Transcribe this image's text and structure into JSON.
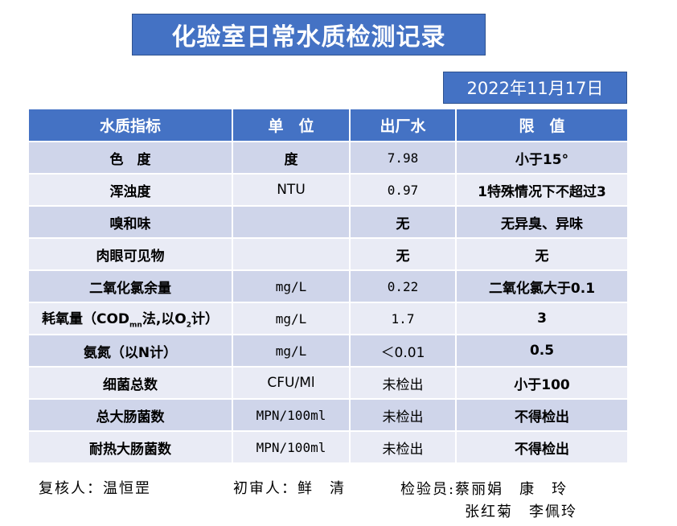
{
  "title": "化验室日常水质检测记录",
  "date": "2022年11月17日",
  "headers": [
    "水质指标",
    "单　位",
    "出厂水",
    "限　值"
  ],
  "rows": [
    {
      "indicator": "色　度",
      "unit": "度",
      "value": "7.98",
      "limit": "小于15°"
    },
    {
      "indicator": "浑浊度",
      "unit": "NTU",
      "value": "0.97",
      "limit": "1特殊情况下不超过3"
    },
    {
      "indicator": "嗅和味",
      "unit": "",
      "value": "无",
      "limit": "无异臭、异味"
    },
    {
      "indicator": "肉眼可见物",
      "unit": "",
      "value": "无",
      "limit": "无"
    },
    {
      "indicator": "二氧化氯余量",
      "unit": "mg/L",
      "value": "0.22",
      "limit": "二氧化氯大于0.1"
    },
    {
      "indicator_parts": [
        "耗氧量（COD",
        "mn",
        "法,以O",
        "2",
        "计）"
      ],
      "unit": "mg/L",
      "value": "1.7",
      "limit": "3"
    },
    {
      "indicator": "氨氮（以N计）",
      "unit": "mg/L",
      "value": "＜0.01",
      "limit": "0.5"
    },
    {
      "indicator": "细菌总数",
      "unit": "CFU/Ml",
      "value": "未检出",
      "limit": "小于100"
    },
    {
      "indicator": "总大肠菌数",
      "unit": "MPN/100ml",
      "value": "未检出",
      "limit": "不得检出"
    },
    {
      "indicator": "耐热大肠菌数",
      "unit": "MPN/100ml",
      "value": "未检出",
      "limit": "不得检出"
    }
  ],
  "footer": {
    "reviewer": "复核人：温恒罡",
    "first_reviewer": "初审人：鲜　清",
    "inspectors_line1": "检验员:蔡丽娟　康　玲",
    "inspectors_line2": "张红菊　李佩玲"
  }
}
